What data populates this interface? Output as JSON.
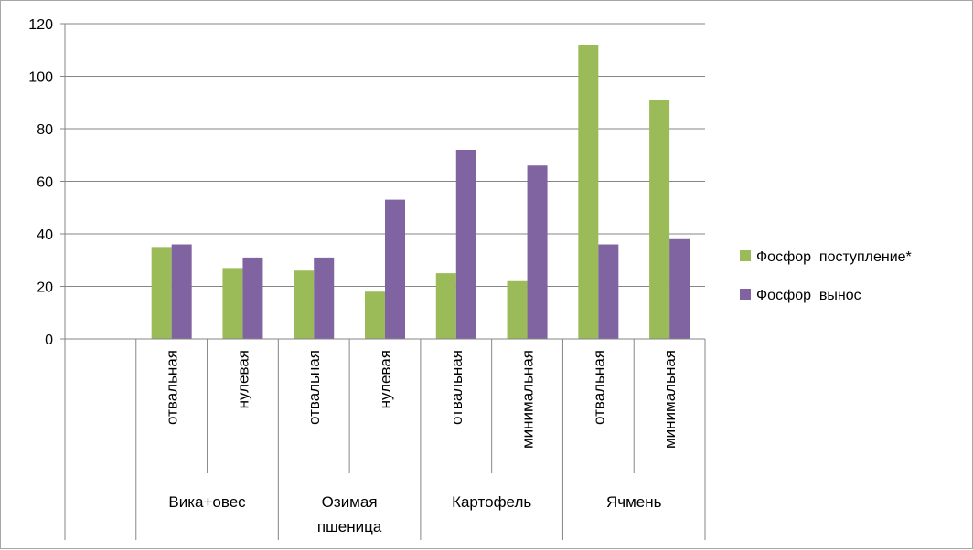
{
  "chart_data": {
    "type": "bar",
    "title": "",
    "xlabel": "",
    "ylabel": "",
    "ylim": [
      0,
      120
    ],
    "yticks": [
      0,
      20,
      40,
      60,
      80,
      100,
      120
    ],
    "grid": true,
    "legend_position": "right",
    "categories": [
      "",
      "отвальная",
      "нулевая",
      "отвальная",
      "нулевая",
      "отвальная",
      "минимальная",
      "отвальная",
      "минимальная"
    ],
    "groups": [
      {
        "label": "Вика+овес",
        "span": [
          1,
          2
        ]
      },
      {
        "label": "Озимая пшеница",
        "span": [
          3,
          4
        ]
      },
      {
        "label": "Картофель",
        "span": [
          5,
          6
        ]
      },
      {
        "label": "Ячмень",
        "span": [
          7,
          8
        ]
      }
    ],
    "series": [
      {
        "name": "Фосфор  поступление*",
        "color": "#9bbb59",
        "values": [
          null,
          35,
          27,
          26,
          18,
          25,
          22,
          112,
          91
        ]
      },
      {
        "name": "Фосфор  вынос",
        "color": "#8064a2",
        "values": [
          null,
          36,
          31,
          31,
          53,
          72,
          66,
          36,
          38
        ]
      }
    ]
  }
}
